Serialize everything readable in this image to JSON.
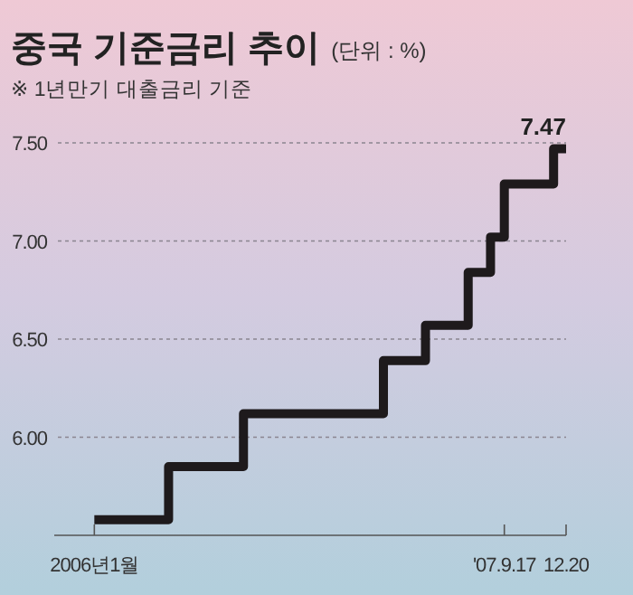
{
  "chart_data": {
    "type": "step",
    "title": "중국 기준금리 추이",
    "ylabel": "(단위 : %)",
    "subtitle": "※ 1년만기 대출금리 기준",
    "x": [
      "2006-01-01",
      "2006-04-24",
      "2006-08-16",
      "2007-03-17",
      "2007-05-20",
      "2007-07-24",
      "2007-08-27",
      "2007-09-17",
      "2007-12-01",
      "2007-12-20"
    ],
    "series": [
      {
        "color": "#1e1a1c",
        "values": [
          5.58,
          5.85,
          6.12,
          6.39,
          6.57,
          6.84,
          7.02,
          7.29,
          7.47,
          7.47
        ]
      }
    ],
    "annotations": [
      {
        "text": "7.47",
        "x": "2007-12-20",
        "y": 7.47
      }
    ],
    "xlim": [
      "2005-11-01",
      "2007-12-20"
    ],
    "xticks": [
      {
        "value": "2006-01-01",
        "label": "2006년1월"
      },
      {
        "value": "2007-09-17",
        "label": "'07.9.17"
      },
      {
        "value": "2007-12-20",
        "label": "12.20"
      }
    ],
    "ylim": [
      5.5,
      7.5
    ],
    "yticks": [
      {
        "value": 6,
        "label": "6.00"
      },
      {
        "value": 6.5,
        "label": "6.50"
      },
      {
        "value": 7,
        "label": "7.00"
      },
      {
        "value": 7.5,
        "label": "7.50"
      }
    ],
    "grid": "y",
    "line_style": "solid",
    "marker": "none"
  }
}
